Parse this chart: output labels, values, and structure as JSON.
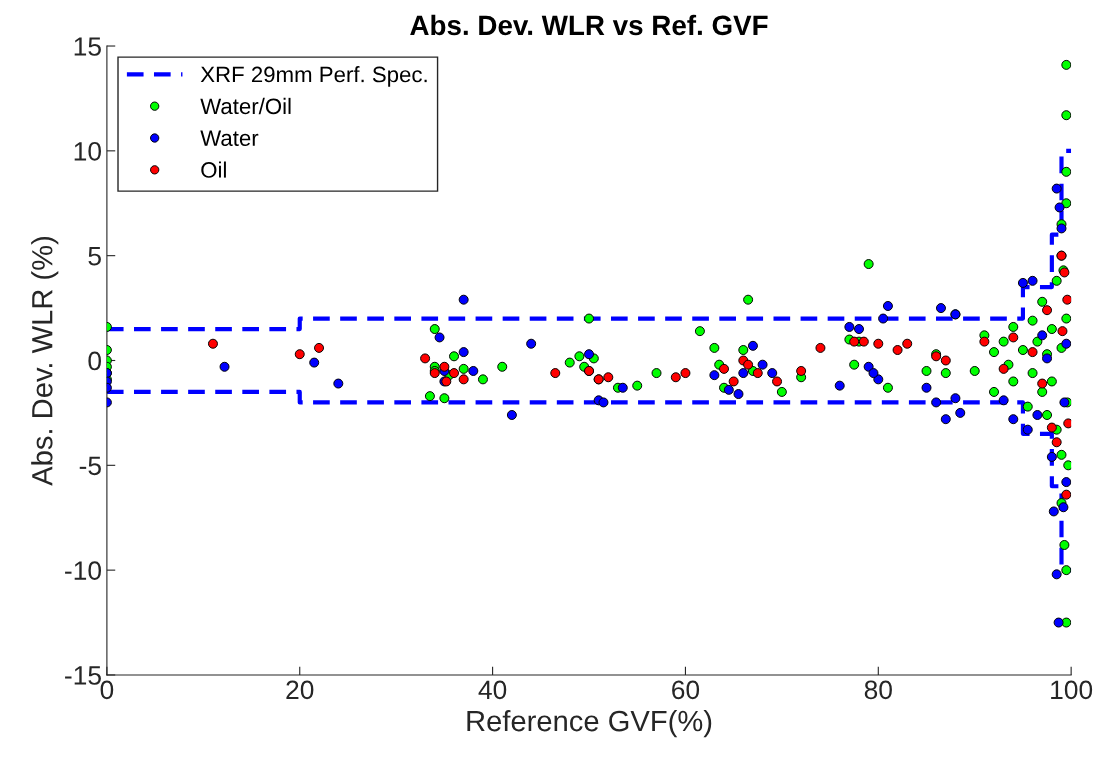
{
  "chart_data": {
    "type": "scatter",
    "title": "Abs. Dev. WLR vs Ref. GVF",
    "xlabel": "Reference GVF(%)",
    "ylabel": "Abs. Dev. WLR (%)",
    "xlim": [
      0,
      100
    ],
    "xticks": [
      0,
      20,
      40,
      60,
      80,
      100
    ],
    "ylim": [
      -15,
      15
    ],
    "yticks": [
      -15,
      -10,
      -5,
      0,
      5,
      10,
      15
    ],
    "grid": false,
    "legend": "top left",
    "series": [
      {
        "name": "XRF 29mm Perf. Spec.",
        "type": "line",
        "line_style": "dashed",
        "marker": "none",
        "color": "#0000ff",
        "x": [
          0,
          20,
          20,
          95,
          95,
          98,
          98,
          99,
          99,
          100
        ],
        "values": [
          1.5,
          1.5,
          2,
          2,
          3.5,
          3.5,
          6,
          6,
          10,
          10
        ]
      },
      {
        "type": "line",
        "line_style": "dashed",
        "marker": "none",
        "color": "#0000ff",
        "x": [
          0,
          20,
          20,
          95,
          95,
          98,
          98,
          99,
          99,
          100
        ],
        "values": [
          -1.5,
          -1.5,
          -2,
          -2,
          -3.5,
          -3.5,
          -6,
          -6,
          -10,
          -10
        ]
      },
      {
        "name": "Water/Oil",
        "marker": "circle",
        "color": "#00ff00",
        "x": [
          0,
          0,
          0,
          0,
          0,
          0,
          34,
          34,
          34,
          33.5,
          35,
          36,
          35.5,
          37,
          39,
          41,
          48,
          49,
          49.5,
          50,
          50.5,
          51,
          53,
          55,
          57,
          61.5,
          63,
          63.5,
          64,
          66.5,
          66,
          67,
          70,
          72,
          77,
          78,
          77.5,
          79,
          81,
          85,
          86,
          87,
          88,
          90,
          91,
          92,
          92,
          93,
          93.5,
          94,
          94,
          95,
          95.5,
          96,
          96,
          96.5,
          97,
          97,
          97.5,
          97.5,
          98,
          98,
          98.5,
          98.5,
          99,
          99,
          99,
          99.5,
          99.5,
          99.5,
          99.5,
          99.5,
          99.5,
          99.3,
          99,
          99.7,
          99.5,
          99.6,
          99.2,
          99
        ],
        "values": [
          1.6,
          0.5,
          0.0,
          -0.3,
          -0.6,
          -0.9,
          1.5,
          -0.3,
          -0.5,
          -1.7,
          -1.8,
          0.2,
          -0.7,
          -0.4,
          -0.9,
          -0.3,
          -0.1,
          0.2,
          -0.3,
          2.0,
          0.1,
          -0.9,
          -1.3,
          -1.2,
          -0.6,
          1.4,
          0.6,
          -0.2,
          -1.3,
          2.9,
          0.5,
          -0.5,
          -1.5,
          -0.8,
          1.0,
          0.9,
          -0.2,
          4.6,
          -1.3,
          -0.5,
          0.3,
          -0.6,
          2.2,
          -0.5,
          1.2,
          0.4,
          -1.5,
          0.9,
          -0.2,
          1.6,
          -1.0,
          0.5,
          -2.2,
          1.9,
          -0.6,
          0.9,
          -1.5,
          2.8,
          0.3,
          -2.6,
          1.5,
          -1.0,
          3.8,
          -3.3,
          6.5,
          -4.5,
          0.6,
          14.1,
          11.7,
          9.0,
          7.5,
          -10.0,
          -12.5,
          -8.8,
          5.0,
          -5.0,
          2.0,
          -2.0,
          4.3,
          -6.8
        ]
      },
      {
        "name": "Water",
        "marker": "circle",
        "color": "#0000ff",
        "x": [
          0,
          0,
          0,
          0,
          12.2,
          21.5,
          24,
          34.5,
          35,
          37,
          37,
          38,
          42,
          44,
          35,
          50,
          51,
          51.5,
          53.5,
          50,
          63,
          64.5,
          65.5,
          66,
          67,
          68,
          69,
          76,
          77,
          78,
          79,
          80,
          80.5,
          81,
          79.5,
          85,
          86,
          86.5,
          87,
          88,
          88.5,
          88,
          93,
          94,
          95,
          95.5,
          96,
          96.5,
          97,
          97.5,
          98,
          98.2,
          98.5,
          98.7,
          98.5,
          98.8,
          99,
          99.2,
          99.3,
          99.5,
          99.5
        ],
        "values": [
          -0.6,
          -1.0,
          -1.3,
          -2.0,
          -0.3,
          -0.1,
          -1.1,
          1.1,
          -0.5,
          2.9,
          0.4,
          -0.5,
          -2.6,
          0.8,
          -1.0,
          -0.5,
          -1.9,
          -2.0,
          -1.3,
          0.3,
          -0.7,
          -1.4,
          -1.6,
          -0.6,
          0.7,
          -0.2,
          -0.6,
          -1.2,
          1.6,
          1.5,
          -0.3,
          -0.9,
          2.0,
          2.6,
          -0.6,
          -1.3,
          -2.0,
          2.5,
          -2.8,
          -1.8,
          -2.5,
          2.2,
          -1.9,
          -2.8,
          3.7,
          -3.3,
          3.8,
          -2.6,
          1.2,
          0.1,
          -4.6,
          -7.2,
          -10.2,
          -12.5,
          8.2,
          7.3,
          6.3,
          -7.0,
          -2.0,
          0.8,
          -5.8
        ]
      },
      {
        "name": "Oil",
        "marker": "circle",
        "color": "#ff0000",
        "x": [
          11,
          20,
          22,
          33,
          34,
          35,
          35.2,
          36,
          37,
          46.5,
          50,
          51,
          52,
          59,
          60,
          64,
          65,
          66,
          66.5,
          67.5,
          69.5,
          72,
          74,
          77.5,
          78.5,
          80,
          82,
          83,
          86,
          87,
          91,
          93,
          94,
          96,
          97,
          97.5,
          98,
          98.5,
          99,
          99.3,
          99.1,
          99.5,
          99.6,
          99.7
        ],
        "values": [
          0.8,
          0.3,
          0.6,
          0.1,
          -0.6,
          -0.3,
          -1.0,
          -0.6,
          -0.9,
          -0.6,
          -0.5,
          -0.9,
          -0.8,
          -0.8,
          -0.6,
          -0.4,
          -1.0,
          0.0,
          -0.2,
          -0.6,
          -1.0,
          -0.5,
          0.6,
          0.9,
          0.9,
          0.8,
          0.5,
          0.8,
          0.2,
          0.0,
          0.9,
          -0.4,
          1.1,
          0.4,
          -1.1,
          2.4,
          -3.2,
          -3.9,
          5.0,
          4.2,
          1.4,
          -6.4,
          2.9,
          -3.0
        ]
      }
    ]
  }
}
